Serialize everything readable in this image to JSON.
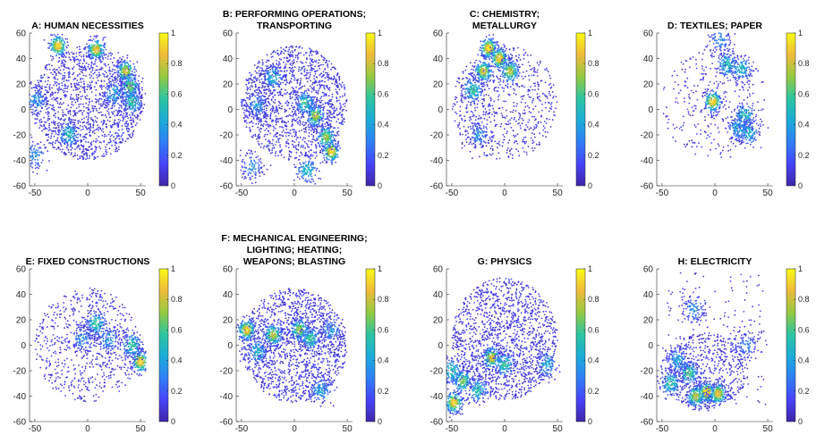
{
  "colormap": [
    "#3e26a8",
    "#4743f8",
    "#2f7ff6",
    "#1bacd9",
    "#2dc5a0",
    "#94ca41",
    "#f0ba3a",
    "#f9fb15"
  ],
  "chart_data": [
    {
      "type": "scatter",
      "title_lines": [
        "A: HUMAN NECESSITIES"
      ],
      "xlim": [
        -55,
        55
      ],
      "ylim": [
        -60,
        60
      ],
      "xticks": [
        -50,
        0,
        50
      ],
      "yticks": [
        60,
        40,
        20,
        0,
        -20,
        -40,
        -60
      ],
      "colorbar": {
        "range": [
          0,
          1
        ],
        "ticks": [
          "1",
          "0.8",
          "0.6",
          "0.4",
          "0.2",
          "0"
        ]
      },
      "cloud": {
        "shape": "disc",
        "cx": 0,
        "cy": 5,
        "rx": 52,
        "ry": 45
      },
      "hotspots": [
        {
          "x": -28,
          "y": 50,
          "density": 0.95
        },
        {
          "x": 8,
          "y": 47,
          "density": 0.9
        },
        {
          "x": 36,
          "y": 30,
          "density": 0.85
        },
        {
          "x": 40,
          "y": 18,
          "density": 0.7
        },
        {
          "x": 42,
          "y": 6,
          "density": 0.6
        },
        {
          "x": -18,
          "y": -20,
          "density": 0.55
        },
        {
          "x": -48,
          "y": 7,
          "density": 0.4
        },
        {
          "x": -50,
          "y": -36,
          "density": 0.35
        },
        {
          "x": 25,
          "y": 12,
          "density": 0.45
        }
      ]
    },
    {
      "type": "scatter",
      "title_lines": [
        "B: PERFORMING OPERATIONS;",
        "TRANSPORTING"
      ],
      "xlim": [
        -55,
        55
      ],
      "ylim": [
        -60,
        60
      ],
      "xticks": [
        -50,
        0,
        50
      ],
      "yticks": [
        60,
        40,
        20,
        0,
        -20,
        -40,
        -60
      ],
      "colorbar": {
        "range": [
          0,
          1
        ],
        "ticks": [
          "1",
          "0.8",
          "0.6",
          "0.4",
          "0.2",
          "0"
        ]
      },
      "cloud": {
        "shape": "disc",
        "cx": 0,
        "cy": 5,
        "rx": 50,
        "ry": 45
      },
      "hotspots": [
        {
          "x": 35,
          "y": -33,
          "density": 0.95
        },
        {
          "x": 20,
          "y": -5,
          "density": 0.8
        },
        {
          "x": 30,
          "y": -22,
          "density": 0.75
        },
        {
          "x": 10,
          "y": 5,
          "density": 0.6
        },
        {
          "x": -20,
          "y": 25,
          "density": 0.5
        },
        {
          "x": 12,
          "y": -48,
          "density": 0.5
        },
        {
          "x": -35,
          "y": 3,
          "density": 0.4
        },
        {
          "x": -40,
          "y": -45,
          "density": 0.35
        }
      ]
    },
    {
      "type": "scatter",
      "title_lines": [
        "C: CHEMISTRY;",
        "METALLURGY"
      ],
      "xlim": [
        -55,
        55
      ],
      "ylim": [
        -60,
        60
      ],
      "xticks": [
        -50,
        0,
        50
      ],
      "yticks": [
        60,
        40,
        20,
        0,
        -20,
        -40,
        -60
      ],
      "colorbar": {
        "range": [
          0,
          1
        ],
        "ticks": [
          "1",
          "0.8",
          "0.6",
          "0.4",
          "0.2",
          "0"
        ]
      },
      "cloud": {
        "shape": "sparse",
        "cx": 0,
        "cy": 5,
        "rx": 50,
        "ry": 45
      },
      "hotspots": [
        {
          "x": -15,
          "y": 48,
          "density": 1.0
        },
        {
          "x": -5,
          "y": 40,
          "density": 0.95
        },
        {
          "x": -20,
          "y": 30,
          "density": 0.85
        },
        {
          "x": 5,
          "y": 30,
          "density": 0.8
        },
        {
          "x": -30,
          "y": 15,
          "density": 0.6
        },
        {
          "x": -25,
          "y": -20,
          "density": 0.35
        }
      ]
    },
    {
      "type": "scatter",
      "title_lines": [
        "D: TEXTILES; PAPER"
      ],
      "xlim": [
        -55,
        55
      ],
      "ylim": [
        -60,
        60
      ],
      "xticks": [
        -50,
        0,
        50
      ],
      "yticks": [
        60,
        40,
        20,
        0,
        -20,
        -40,
        -60
      ],
      "colorbar": {
        "range": [
          0,
          1
        ],
        "ticks": [
          "1",
          "0.8",
          "0.6",
          "0.4",
          "0.2",
          "0"
        ]
      },
      "cloud": {
        "shape": "very-sparse",
        "cx": 0,
        "cy": 5,
        "rx": 50,
        "ry": 45
      },
      "hotspots": [
        {
          "x": -2,
          "y": 6,
          "density": 0.95
        },
        {
          "x": 12,
          "y": 35,
          "density": 0.55
        },
        {
          "x": 25,
          "y": 32,
          "density": 0.5
        },
        {
          "x": 28,
          "y": -5,
          "density": 0.55
        },
        {
          "x": 32,
          "y": -18,
          "density": 0.5
        },
        {
          "x": 22,
          "y": -15,
          "density": 0.45
        },
        {
          "x": 5,
          "y": 55,
          "density": 0.35
        }
      ]
    },
    {
      "type": "scatter",
      "title_lines": [
        "E: FIXED CONSTRUCTIONS"
      ],
      "xlim": [
        -55,
        55
      ],
      "ylim": [
        -60,
        60
      ],
      "xticks": [
        -50,
        0,
        50
      ],
      "yticks": [
        60,
        40,
        20,
        0,
        -20,
        -40,
        -60
      ],
      "colorbar": {
        "range": [
          0,
          1
        ],
        "ticks": [
          "1",
          "0.8",
          "0.6",
          "0.4",
          "0.2",
          "0"
        ]
      },
      "cloud": {
        "shape": "sparse",
        "cx": 0,
        "cy": 0,
        "rx": 50,
        "ry": 45
      },
      "hotspots": [
        {
          "x": 50,
          "y": -13,
          "density": 0.95
        },
        {
          "x": 42,
          "y": 0,
          "density": 0.6
        },
        {
          "x": 8,
          "y": 17,
          "density": 0.6
        },
        {
          "x": 20,
          "y": 5,
          "density": 0.4
        },
        {
          "x": -5,
          "y": 5,
          "density": 0.35
        }
      ]
    },
    {
      "type": "scatter",
      "title_lines": [
        "F: MECHANICAL ENGINEERING;",
        "LIGHTING; HEATING;",
        "WEAPONS; BLASTING"
      ],
      "xlim": [
        -55,
        55
      ],
      "ylim": [
        -60,
        60
      ],
      "xticks": [
        -50,
        0,
        50
      ],
      "yticks": [
        60,
        40,
        20,
        0,
        -20,
        -40,
        -60
      ],
      "colorbar": {
        "range": [
          0,
          1
        ],
        "ticks": [
          "1",
          "0.8",
          "0.6",
          "0.4",
          "0.2",
          "0"
        ]
      },
      "cloud": {
        "shape": "disc",
        "cx": 0,
        "cy": 0,
        "rx": 50,
        "ry": 45
      },
      "hotspots": [
        {
          "x": -45,
          "y": 12,
          "density": 0.95
        },
        {
          "x": -20,
          "y": 8,
          "density": 0.8
        },
        {
          "x": 5,
          "y": 12,
          "density": 0.75
        },
        {
          "x": 15,
          "y": 5,
          "density": 0.6
        },
        {
          "x": -35,
          "y": -5,
          "density": 0.5
        },
        {
          "x": 25,
          "y": -35,
          "density": 0.45
        },
        {
          "x": 35,
          "y": 12,
          "density": 0.4
        }
      ]
    },
    {
      "type": "scatter",
      "title_lines": [
        "G: PHYSICS"
      ],
      "xlim": [
        -55,
        55
      ],
      "ylim": [
        -60,
        60
      ],
      "xticks": [
        -50,
        0,
        50
      ],
      "yticks": [
        60,
        40,
        20,
        0,
        -20,
        -40,
        -60
      ],
      "colorbar": {
        "range": [
          0,
          1
        ],
        "ticks": [
          "1",
          "0.8",
          "0.6",
          "0.4",
          "0.2",
          "0"
        ]
      },
      "cloud": {
        "shape": "disc",
        "cx": 0,
        "cy": 5,
        "rx": 50,
        "ry": 48
      },
      "hotspots": [
        {
          "x": -48,
          "y": -45,
          "density": 0.95
        },
        {
          "x": -40,
          "y": -28,
          "density": 0.7
        },
        {
          "x": -12,
          "y": -10,
          "density": 0.85
        },
        {
          "x": 0,
          "y": -15,
          "density": 0.6
        },
        {
          "x": -25,
          "y": -35,
          "density": 0.55
        },
        {
          "x": -50,
          "y": -20,
          "density": 0.55
        },
        {
          "x": 40,
          "y": -15,
          "density": 0.45
        }
      ]
    },
    {
      "type": "scatter",
      "title_lines": [
        "H: ELECTRICITY"
      ],
      "xlim": [
        -55,
        55
      ],
      "ylim": [
        -60,
        60
      ],
      "xticks": [
        -50,
        0,
        50
      ],
      "yticks": [
        60,
        40,
        20,
        0,
        -20,
        -40,
        -60
      ],
      "colorbar": {
        "range": [
          0,
          1
        ],
        "ticks": [
          "1",
          "0.8",
          "0.6",
          "0.4",
          "0.2",
          "0"
        ]
      },
      "cloud": {
        "shape": "lower",
        "cx": -10,
        "cy": -20,
        "rx": 42,
        "ry": 30
      },
      "hotspots": [
        {
          "x": -8,
          "y": -37,
          "density": 1.0
        },
        {
          "x": 3,
          "y": -38,
          "density": 0.9
        },
        {
          "x": -18,
          "y": -40,
          "density": 0.8
        },
        {
          "x": -25,
          "y": -22,
          "density": 0.65
        },
        {
          "x": -42,
          "y": -30,
          "density": 0.6
        },
        {
          "x": -35,
          "y": -12,
          "density": 0.45
        },
        {
          "x": -20,
          "y": 28,
          "density": 0.35
        },
        {
          "x": 30,
          "y": 0,
          "density": 0.3
        }
      ]
    }
  ]
}
